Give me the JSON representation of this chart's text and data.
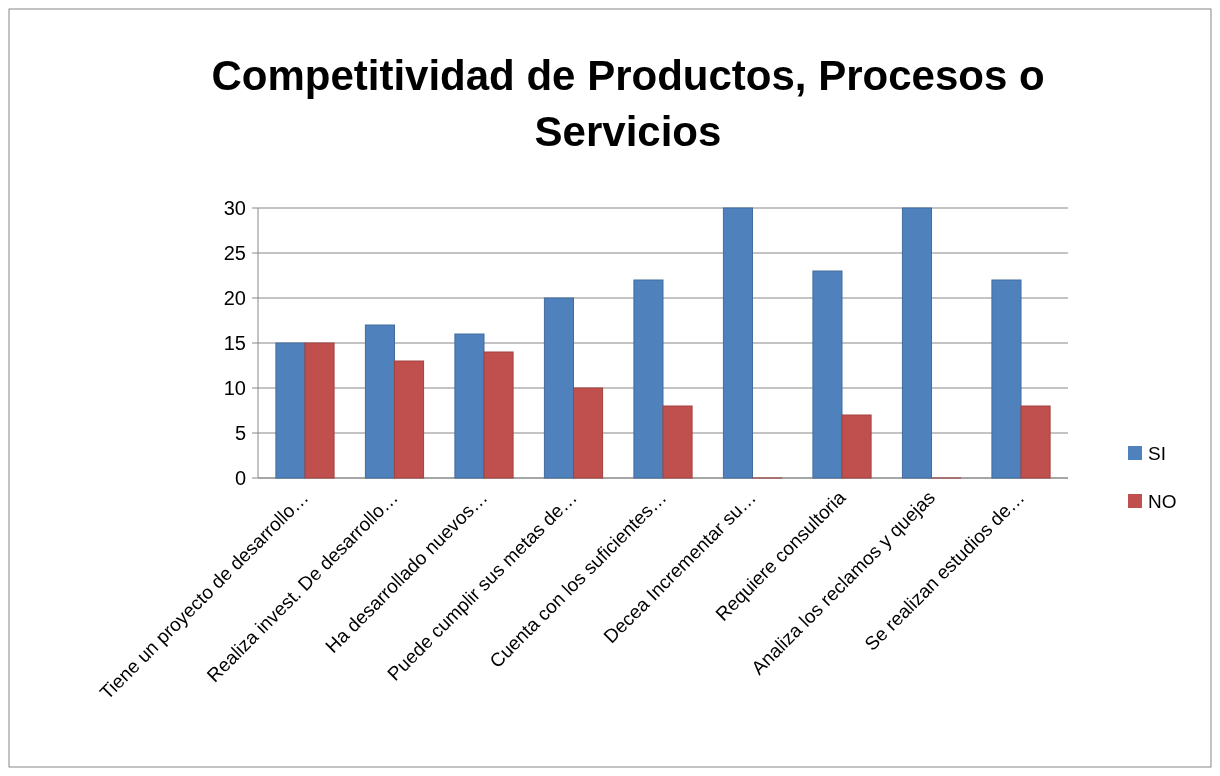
{
  "chart_data": {
    "type": "bar",
    "title": "Competitividad de Productos, Procesos o Servicios",
    "categories": [
      "Tiene un proyecto de desarrollo…",
      "Realiza invest. De desarrollo…",
      "Ha desarrollado nuevos…",
      "Puede cumplir sus metas de…",
      "Cuenta con los suficientes…",
      "Decea Incrementar su…",
      "Requiere consultoria",
      "Analiza los reclamos y quejas",
      "Se realizan estudios de…"
    ],
    "series": [
      {
        "name": "SI",
        "color": "#4f81bd",
        "values": [
          15,
          17,
          16,
          20,
          22,
          30,
          23,
          30,
          22
        ]
      },
      {
        "name": "NO",
        "color": "#c0504d",
        "values": [
          15,
          13,
          14,
          10,
          8,
          0,
          7,
          0,
          8
        ]
      }
    ],
    "ylim": [
      0,
      30
    ],
    "yticks": [
      0,
      5,
      10,
      15,
      20,
      25,
      30
    ],
    "grid": "y",
    "legend": "right"
  }
}
